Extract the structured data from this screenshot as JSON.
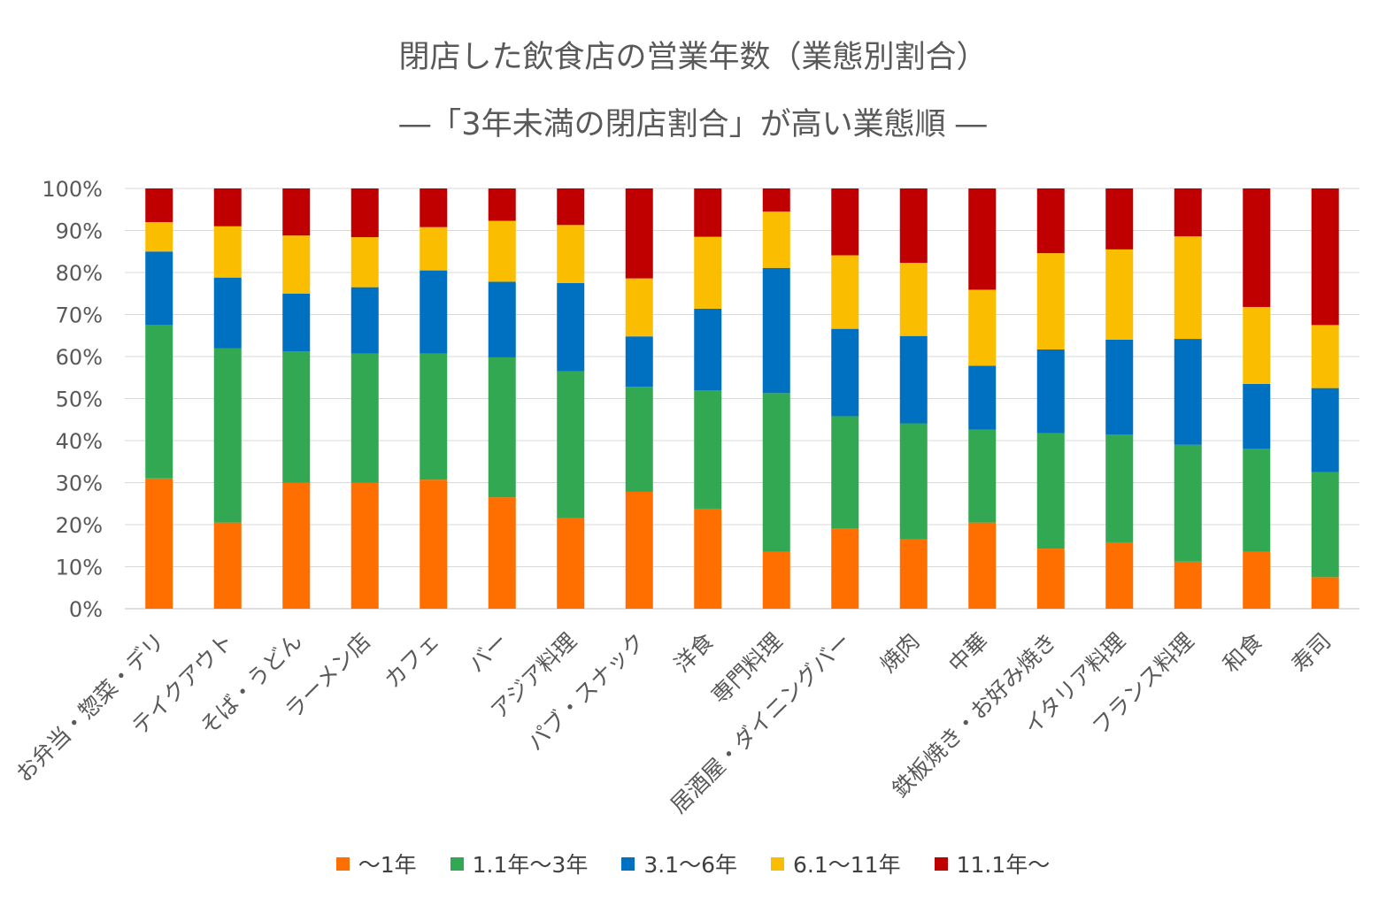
{
  "chart_data": {
    "type": "bar",
    "stacked": true,
    "percent": true,
    "title": "閉店した飲食店の営業年数（業態別割合）",
    "subtitle": "―「3年未満の閉店割合」が高い業態順 ―",
    "ylim": [
      0,
      100
    ],
    "yticks": [
      "0%",
      "10%",
      "20%",
      "30%",
      "40%",
      "50%",
      "60%",
      "70%",
      "80%",
      "90%",
      "100%"
    ],
    "categories": [
      "お弁当・惣菜・デリ",
      "テイクアウト",
      "そば・うどん",
      "ラーメン店",
      "カフェ",
      "バー",
      "アジア料理",
      "パブ・スナック",
      "洋食",
      "専門料理",
      "居酒屋・ダイニングバー",
      "焼肉",
      "中華",
      "鉄板焼き・お好み焼き",
      "イタリア料理",
      "フランス料理",
      "和食",
      "寿司"
    ],
    "series": [
      {
        "name": "～1年",
        "color": "#FF6F00",
        "values": [
          31,
          20.5,
          30,
          30,
          30.7,
          26.5,
          21.5,
          27.8,
          23.8,
          13.5,
          19,
          16.5,
          20.5,
          14.3,
          15.8,
          11.2,
          13.5,
          7.5
        ]
      },
      {
        "name": "1.1年～3年",
        "color": "#33A852",
        "values": [
          36.5,
          41.5,
          31.2,
          30.7,
          30,
          33.3,
          35,
          25,
          28.2,
          37.8,
          26.8,
          27.6,
          22.1,
          27.5,
          25.6,
          27.8,
          24.6,
          25
        ]
      },
      {
        "name": "3.1～6年",
        "color": "#0070C0",
        "values": [
          17.5,
          16.8,
          13.8,
          15.8,
          19.8,
          18,
          21,
          12,
          19.4,
          29.8,
          20.8,
          20.8,
          15.2,
          19.9,
          22.6,
          25.2,
          15.4,
          20
        ]
      },
      {
        "name": "6.1～11年",
        "color": "#FABD00",
        "values": [
          7,
          12.2,
          13.8,
          11.9,
          10.3,
          14.5,
          13.8,
          13.8,
          17.1,
          13.4,
          17.5,
          17.4,
          18.1,
          22.9,
          21.5,
          24.4,
          18.3,
          15
        ]
      },
      {
        "name": "11.1年～",
        "color": "#C00000",
        "values": [
          8,
          9,
          11.2,
          11.6,
          9.2,
          7.7,
          8.7,
          21.4,
          11.5,
          5.5,
          15.9,
          17.7,
          24.1,
          15.4,
          14.5,
          11.4,
          28.2,
          32.5
        ]
      }
    ]
  }
}
